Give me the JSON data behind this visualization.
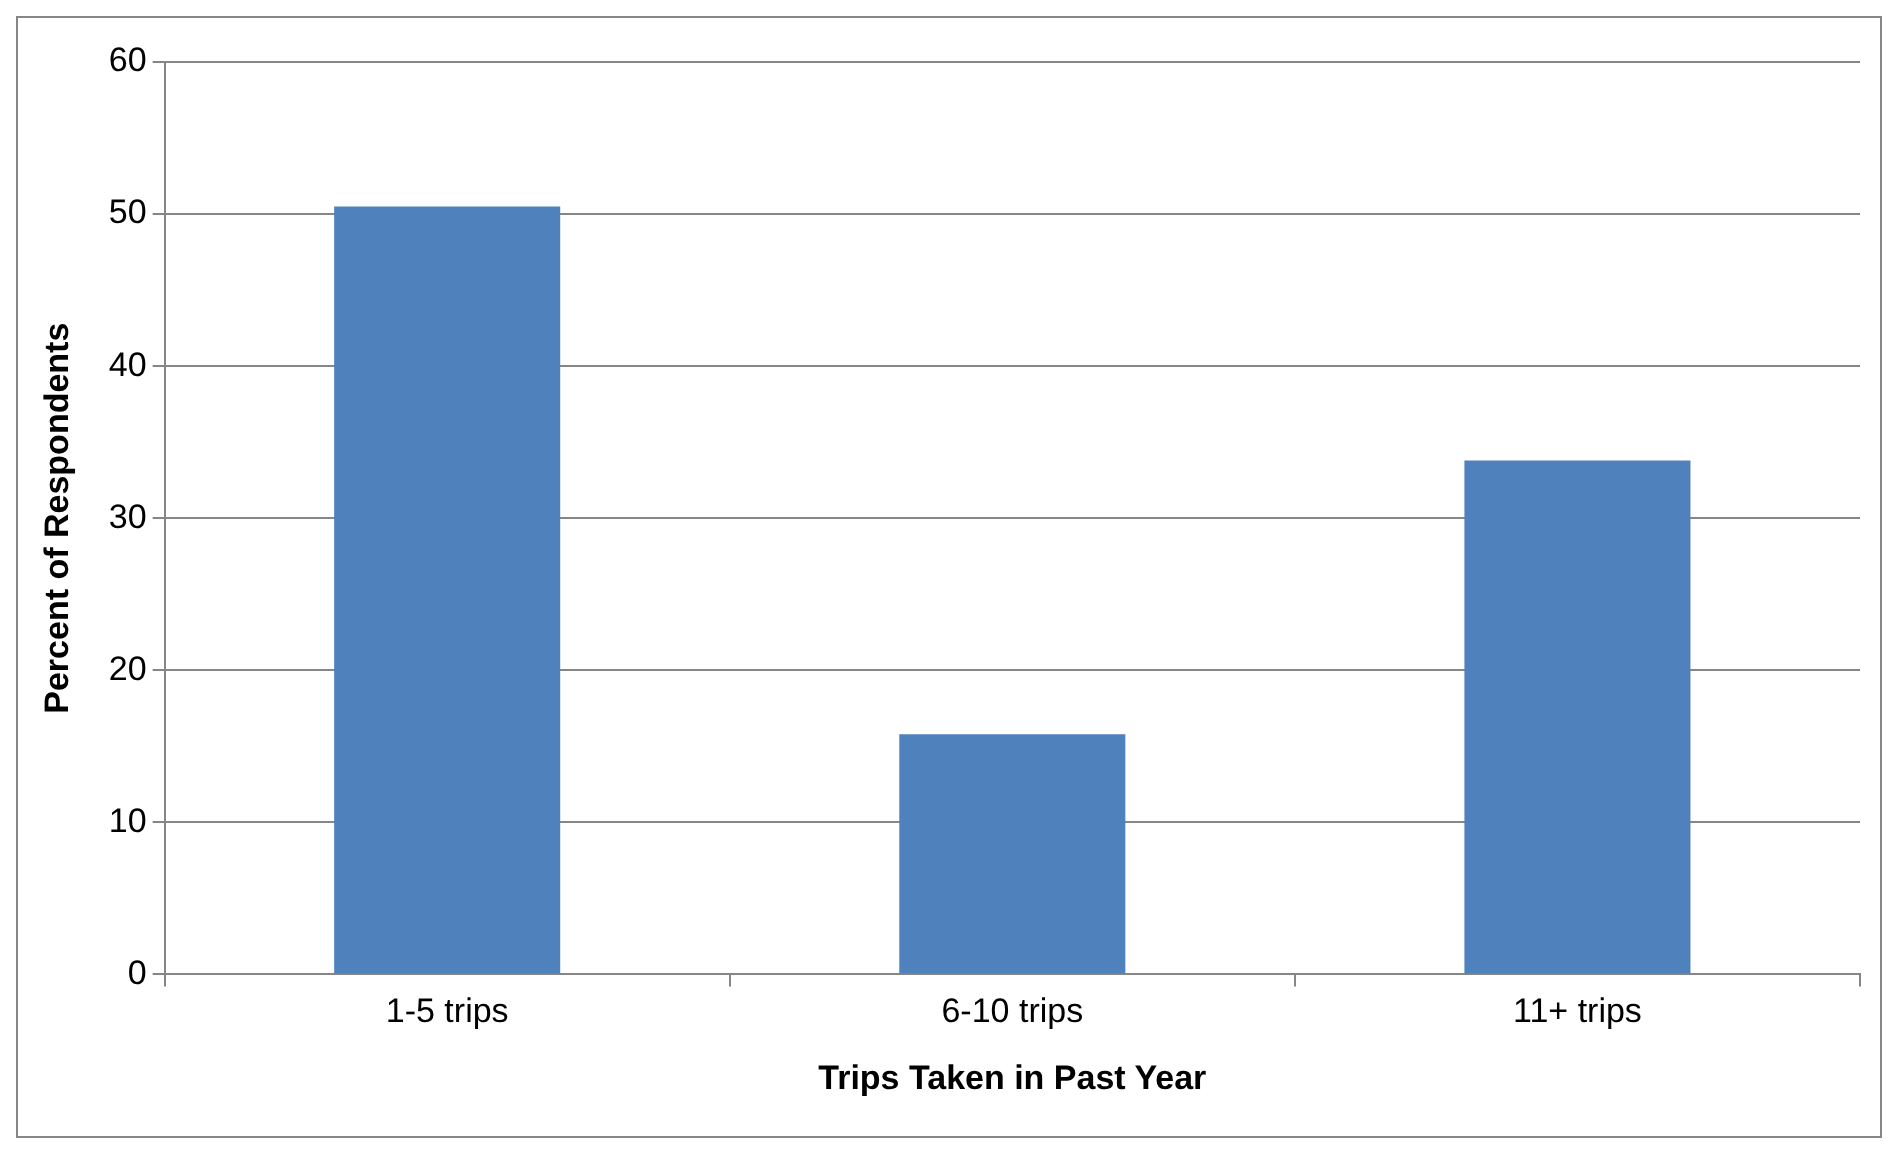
{
  "chart_data": {
    "type": "bar",
    "xlabel": "Trips Taken in Past Year",
    "ylabel": "Percent of Respondents",
    "categories": [
      "1-5 trips",
      "6-10 trips",
      "11+ trips"
    ],
    "values": [
      50.5,
      15.8,
      33.8
    ],
    "color": "#4f81bd",
    "ylim": [
      0,
      60
    ],
    "yticks": [
      0,
      10,
      20,
      30,
      40,
      50,
      60
    ],
    "grid": "y",
    "legend": false
  }
}
